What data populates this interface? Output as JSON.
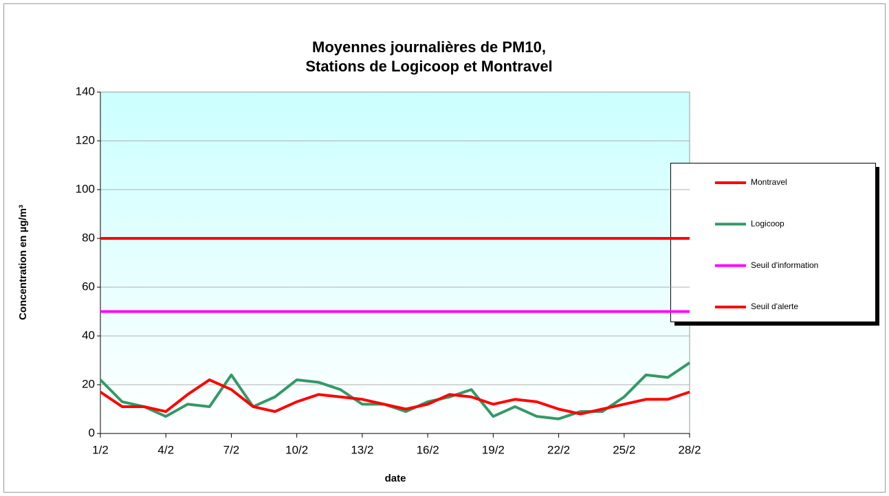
{
  "chart_data": {
    "type": "line",
    "title": [
      "Moyennes journalières de PM10,",
      "Stations de Logicoop et Montravel"
    ],
    "xlabel": "date",
    "ylabel": "Concentration en µg/m³",
    "categories": [
      "1/2",
      null,
      null,
      "4/2",
      null,
      null,
      "7/2",
      null,
      null,
      "10/2",
      null,
      null,
      "13/2",
      null,
      null,
      "16/2",
      null,
      null,
      "19/2",
      null,
      null,
      "22/2",
      null,
      null,
      "25/2",
      null,
      null,
      "28/2"
    ],
    "series": [
      {
        "name": "Montravel",
        "color": "#ff0000",
        "values": [
          17,
          11,
          11,
          9,
          16,
          22,
          18,
          11,
          9,
          13,
          16,
          15,
          14,
          12,
          10,
          12,
          16,
          15,
          12,
          14,
          13,
          10,
          8,
          10,
          12,
          14,
          14,
          17
        ]
      },
      {
        "name": "Logicoop",
        "color": "#339966",
        "values": [
          22,
          13,
          11,
          7,
          12,
          11,
          24,
          11,
          15,
          22,
          21,
          18,
          12,
          12,
          9,
          13,
          15,
          18,
          7,
          11,
          7,
          6,
          9,
          9,
          15,
          24,
          23,
          29
        ]
      },
      {
        "name": "Seuil d'information",
        "color": "#ff00ff",
        "values": [
          50,
          50,
          50,
          50,
          50,
          50,
          50,
          50,
          50,
          50,
          50,
          50,
          50,
          50,
          50,
          50,
          50,
          50,
          50,
          50,
          50,
          50,
          50,
          50,
          50,
          50,
          50,
          50
        ]
      },
      {
        "name": "Seuil d'alerte",
        "color": "#ff0000",
        "values": [
          80,
          80,
          80,
          80,
          80,
          80,
          80,
          80,
          80,
          80,
          80,
          80,
          80,
          80,
          80,
          80,
          80,
          80,
          80,
          80,
          80,
          80,
          80,
          80,
          80,
          80,
          80,
          80
        ]
      }
    ],
    "ylim": [
      0,
      140
    ],
    "yticks": [
      0,
      20,
      40,
      60,
      80,
      100,
      120,
      140
    ],
    "grid": true,
    "legend": "right"
  }
}
